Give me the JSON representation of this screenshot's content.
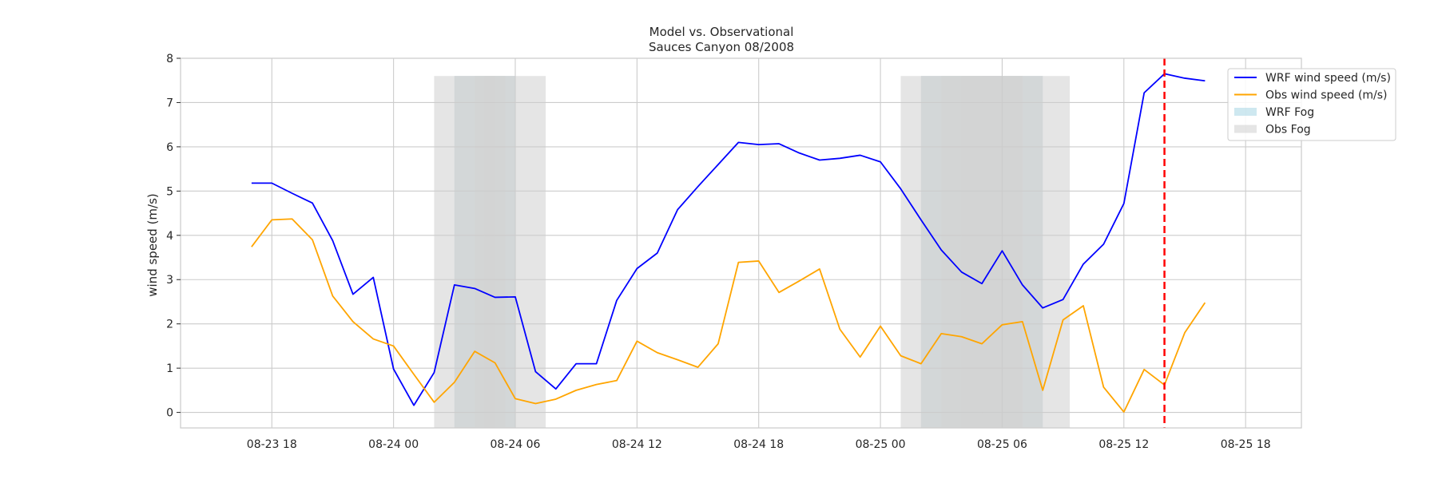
{
  "chart_data": {
    "type": "line",
    "title": "Model vs. Observational",
    "subtitle": "Sauces Canyon 08/2008",
    "xlabel": "",
    "ylabel": "wind speed (m/s)",
    "xlim": [
      "2008-08-23 13:30",
      "2008-08-25 20:45"
    ],
    "ylim": [
      -0.35,
      8
    ],
    "x_ticks": [
      "2008-08-23 18:00",
      "2008-08-24 00:00",
      "2008-08-24 06:00",
      "2008-08-24 12:00",
      "2008-08-24 18:00",
      "2008-08-25 00:00",
      "2008-08-25 06:00",
      "2008-08-25 12:00",
      "2008-08-25 18:00"
    ],
    "x_tick_labels": [
      "08-23 18",
      "08-24 00",
      "08-24 06",
      "08-24 12",
      "08-24 18",
      "08-25 00",
      "08-25 06",
      "08-25 12",
      "08-25 18"
    ],
    "y_ticks": [
      0,
      1,
      2,
      3,
      4,
      5,
      6,
      7,
      8
    ],
    "grid": true,
    "legend_position": "top-right",
    "series": [
      {
        "name": "WRF wind speed (m/s)",
        "color": "#0000ff",
        "x": [
          "2008-08-23 17:00",
          "2008-08-23 18:00",
          "2008-08-23 19:00",
          "2008-08-23 20:00",
          "2008-08-23 21:00",
          "2008-08-23 22:00",
          "2008-08-23 23:00",
          "2008-08-24 00:00",
          "2008-08-24 01:00",
          "2008-08-24 02:00",
          "2008-08-24 03:00",
          "2008-08-24 04:00",
          "2008-08-24 05:00",
          "2008-08-24 06:00",
          "2008-08-24 07:00",
          "2008-08-24 08:00",
          "2008-08-24 09:00",
          "2008-08-24 10:00",
          "2008-08-24 11:00",
          "2008-08-24 12:00",
          "2008-08-24 13:00",
          "2008-08-24 14:00",
          "2008-08-24 15:00",
          "2008-08-24 16:00",
          "2008-08-24 17:00",
          "2008-08-24 18:00",
          "2008-08-24 19:00",
          "2008-08-24 20:00",
          "2008-08-24 21:00",
          "2008-08-24 22:00",
          "2008-08-24 23:00",
          "2008-08-25 00:00",
          "2008-08-25 01:00",
          "2008-08-25 02:00",
          "2008-08-25 03:00",
          "2008-08-25 04:00",
          "2008-08-25 05:00",
          "2008-08-25 06:00",
          "2008-08-25 07:00",
          "2008-08-25 08:00",
          "2008-08-25 09:00",
          "2008-08-25 10:00",
          "2008-08-25 11:00",
          "2008-08-25 12:00",
          "2008-08-25 13:00",
          "2008-08-25 14:00",
          "2008-08-25 15:00",
          "2008-08-25 16:00"
        ],
        "values": [
          5.18,
          5.18,
          4.95,
          4.73,
          3.88,
          2.67,
          3.05,
          0.98,
          0.16,
          0.9,
          2.88,
          2.8,
          2.6,
          2.61,
          0.92,
          0.53,
          1.1,
          1.1,
          2.53,
          3.25,
          3.6,
          4.58,
          5.1,
          5.6,
          6.1,
          6.05,
          6.07,
          5.86,
          5.7,
          5.74,
          5.81,
          5.66,
          5.05,
          4.35,
          3.67,
          3.17,
          2.91,
          3.65,
          2.88,
          2.36,
          2.55,
          3.35,
          3.8,
          4.72,
          7.22,
          7.65,
          7.55,
          7.49
        ]
      },
      {
        "name": "Obs wind speed (m/s)",
        "color": "#ffa500",
        "x": [
          "2008-08-23 17:00",
          "2008-08-23 18:00",
          "2008-08-23 19:00",
          "2008-08-23 20:00",
          "2008-08-23 21:00",
          "2008-08-23 22:00",
          "2008-08-23 23:00",
          "2008-08-24 00:00",
          "2008-08-24 01:00",
          "2008-08-24 02:00",
          "2008-08-24 03:00",
          "2008-08-24 04:00",
          "2008-08-24 05:00",
          "2008-08-24 06:00",
          "2008-08-24 07:00",
          "2008-08-24 08:00",
          "2008-08-24 09:00",
          "2008-08-24 10:00",
          "2008-08-24 11:00",
          "2008-08-24 12:00",
          "2008-08-24 13:00",
          "2008-08-24 14:00",
          "2008-08-24 15:00",
          "2008-08-24 16:00",
          "2008-08-24 17:00",
          "2008-08-24 18:00",
          "2008-08-24 19:00",
          "2008-08-24 20:00",
          "2008-08-24 21:00",
          "2008-08-24 22:00",
          "2008-08-24 23:00",
          "2008-08-25 00:00",
          "2008-08-25 01:00",
          "2008-08-25 02:00",
          "2008-08-25 03:00",
          "2008-08-25 04:00",
          "2008-08-25 05:00",
          "2008-08-25 06:00",
          "2008-08-25 07:00",
          "2008-08-25 08:00",
          "2008-08-25 09:00",
          "2008-08-25 10:00",
          "2008-08-25 11:00",
          "2008-08-25 12:00",
          "2008-08-25 13:00",
          "2008-08-25 14:00",
          "2008-08-25 15:00",
          "2008-08-25 16:00"
        ],
        "values": [
          3.74,
          4.35,
          4.37,
          3.9,
          2.63,
          2.05,
          1.66,
          1.5,
          0.86,
          0.23,
          0.68,
          1.38,
          1.12,
          0.31,
          0.2,
          0.3,
          0.5,
          0.63,
          0.72,
          1.61,
          1.35,
          1.19,
          1.02,
          1.55,
          3.39,
          3.42,
          2.71,
          2.97,
          3.24,
          1.88,
          1.25,
          1.95,
          1.28,
          1.1,
          1.78,
          1.71,
          1.55,
          1.98,
          2.05,
          0.5,
          2.09,
          2.41,
          0.57,
          0.01,
          0.97,
          0.62,
          1.8,
          2.48
        ]
      }
    ],
    "fog_periods": [
      {
        "name": "WRF Fog",
        "color": "#add8e6",
        "start": "2008-08-24 03:00",
        "end": "2008-08-24 06:00"
      },
      {
        "name": "WRF Fog",
        "color": "#add8e6",
        "start": "2008-08-25 02:00",
        "end": "2008-08-25 08:00"
      },
      {
        "name": "Obs Fog",
        "color": "#d3d3d3",
        "start": "2008-08-24 02:00",
        "end": "2008-08-24 07:30"
      },
      {
        "name": "Obs Fog",
        "color": "#d3d3d3",
        "start": "2008-08-24 03:00",
        "end": "2008-08-24 06:00"
      },
      {
        "name": "Obs Fog",
        "color": "#d3d3d3",
        "start": "2008-08-24 04:00",
        "end": "2008-08-24 05:00"
      },
      {
        "name": "Obs Fog",
        "color": "#d3d3d3",
        "start": "2008-08-24 04:30",
        "end": "2008-08-24 05:30"
      },
      {
        "name": "Obs Fog",
        "color": "#d3d3d3",
        "start": "2008-08-25 01:00",
        "end": "2008-08-25 09:20"
      },
      {
        "name": "Obs Fog",
        "color": "#d3d3d3",
        "start": "2008-08-25 02:00",
        "end": "2008-08-25 08:00"
      },
      {
        "name": "Obs Fog",
        "color": "#d3d3d3",
        "start": "2008-08-25 03:00",
        "end": "2008-08-25 07:00"
      },
      {
        "name": "Obs Fog",
        "color": "#d3d3d3",
        "start": "2008-08-25 04:00",
        "end": "2008-08-25 06:00"
      },
      {
        "name": "Obs Fog",
        "color": "#d3d3d3",
        "start": "2008-08-25 05:00",
        "end": "2008-08-25 07:00"
      }
    ],
    "fog_opacity": 0.6,
    "vline": {
      "x": "2008-08-25 14:00",
      "color": "#ff0000",
      "style": "dashed"
    },
    "legend": [
      {
        "label": "WRF wind speed (m/s)",
        "kind": "line",
        "color": "#0000ff"
      },
      {
        "label": "Obs wind speed (m/s)",
        "kind": "line",
        "color": "#ffa500"
      },
      {
        "label": "WRF Fog",
        "kind": "patch",
        "color": "#add8e6"
      },
      {
        "label": "Obs Fog",
        "kind": "patch",
        "color": "#d3d3d3"
      }
    ]
  }
}
